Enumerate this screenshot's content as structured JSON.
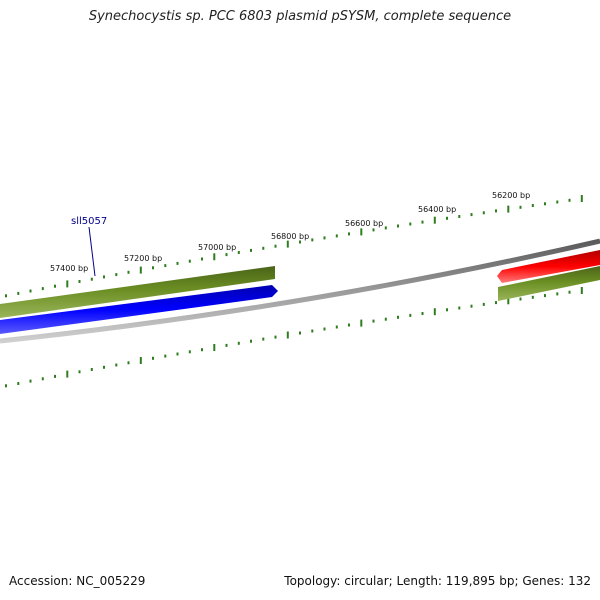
{
  "title": "Synechocystis sp. PCC 6803 plasmid pSYSM, complete sequence",
  "accession_text": "Accession: NC_005229",
  "summary_text": "Topology: circular; Length: 119,895 bp; Genes: 132",
  "colors": {
    "background": "#ffffff",
    "backbone": "#808080",
    "tick": "#2e7d1e",
    "gene_olive": "#6b8e23",
    "gene_blue": "#0000ff",
    "gene_red": "#ff0000",
    "gene_label": "#00008b"
  },
  "ruler_labels": [
    "57400 bp",
    "57200 bp",
    "57000 bp",
    "56800 bp",
    "56600 bp",
    "56400 bp",
    "56200 bp"
  ],
  "gene_labels": [
    "sll5057"
  ]
}
